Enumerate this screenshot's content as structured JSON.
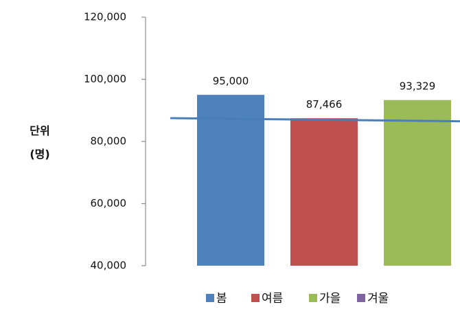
{
  "chart_data": {
    "type": "bar",
    "categories": [
      "봄",
      "여름",
      "가을",
      "겨울"
    ],
    "values": [
      95000,
      87466,
      93329,
      null
    ],
    "data_labels": [
      "95,000",
      "87,466",
      "93,329",
      ""
    ],
    "colors": [
      "#4f81bd",
      "#c0504d",
      "#9bbb59",
      "#8064a2"
    ],
    "ylabel": [
      "단위",
      "(명)"
    ],
    "ylim": [
      40000,
      120000
    ],
    "yticks": [
      40000,
      60000,
      80000,
      100000,
      120000
    ],
    "ytick_labels": [
      "40,000",
      "60,000",
      "80,000",
      "100,000",
      "120,000"
    ],
    "reference_line": {
      "color": "#4a7ebb",
      "value_start": 87500,
      "value_end": 86500
    },
    "grid": false,
    "legend": {
      "placement": "bottom",
      "entries": [
        "봄",
        "여름",
        "가을",
        "겨울"
      ]
    }
  }
}
